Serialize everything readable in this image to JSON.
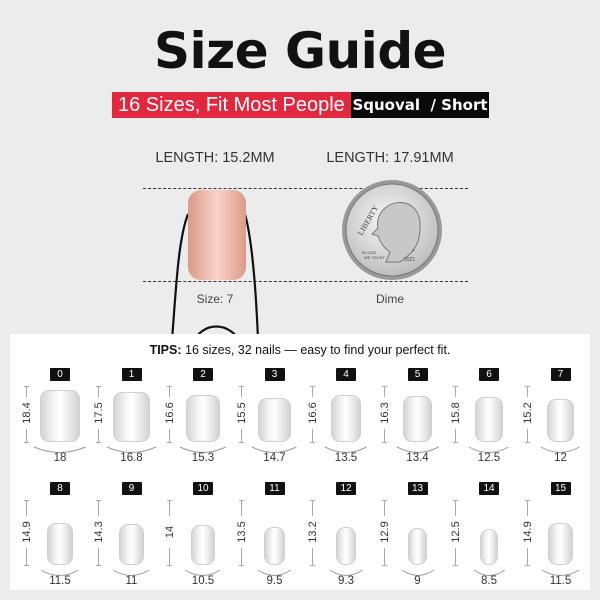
{
  "title": "Size Guide",
  "banner": {
    "tagline": "16 Sizes, Fit Most People",
    "shape": "Squoval",
    "length": "/ Short",
    "tagline_color": "#e0283f"
  },
  "comparison": {
    "nail": {
      "length_label": "LENGTH: 15.2MM",
      "caption": "Size: 7",
      "color": "#e8a99a"
    },
    "coin": {
      "length_label": "LENGTH: 17.91MM",
      "caption": "Dime",
      "engraving": [
        "LIBERTY",
        "IN GOD WE TRUST",
        "2021",
        "P"
      ]
    }
  },
  "tips": {
    "label": "TIPS:",
    "text": " 16 sizes, 32 nails — easy to find your perfect fit."
  },
  "sizes": [
    {
      "size": "0",
      "length": "18.4",
      "width": "18"
    },
    {
      "size": "1",
      "length": "17.5",
      "width": "16.8"
    },
    {
      "size": "2",
      "length": "16.6",
      "width": "15.3"
    },
    {
      "size": "3",
      "length": "15.5",
      "width": "14.7"
    },
    {
      "size": "4",
      "length": "16.6",
      "width": "13.5"
    },
    {
      "size": "5",
      "length": "16.3",
      "width": "13.4"
    },
    {
      "size": "6",
      "length": "15.8",
      "width": "12.5"
    },
    {
      "size": "7",
      "length": "15.2",
      "width": "12"
    },
    {
      "size": "8",
      "length": "14.9",
      "width": "11.5"
    },
    {
      "size": "9",
      "length": "14.3",
      "width": "11"
    },
    {
      "size": "10",
      "length": "14",
      "width": "10.5"
    },
    {
      "size": "11",
      "length": "13.5",
      "width": "9.5"
    },
    {
      "size": "12",
      "length": "13.2",
      "width": "9.3"
    },
    {
      "size": "13",
      "length": "12.9",
      "width": "9"
    },
    {
      "size": "14",
      "length": "12.5",
      "width": "8.5"
    },
    {
      "size": "15",
      "length": "14.9",
      "width": "11.5"
    }
  ]
}
